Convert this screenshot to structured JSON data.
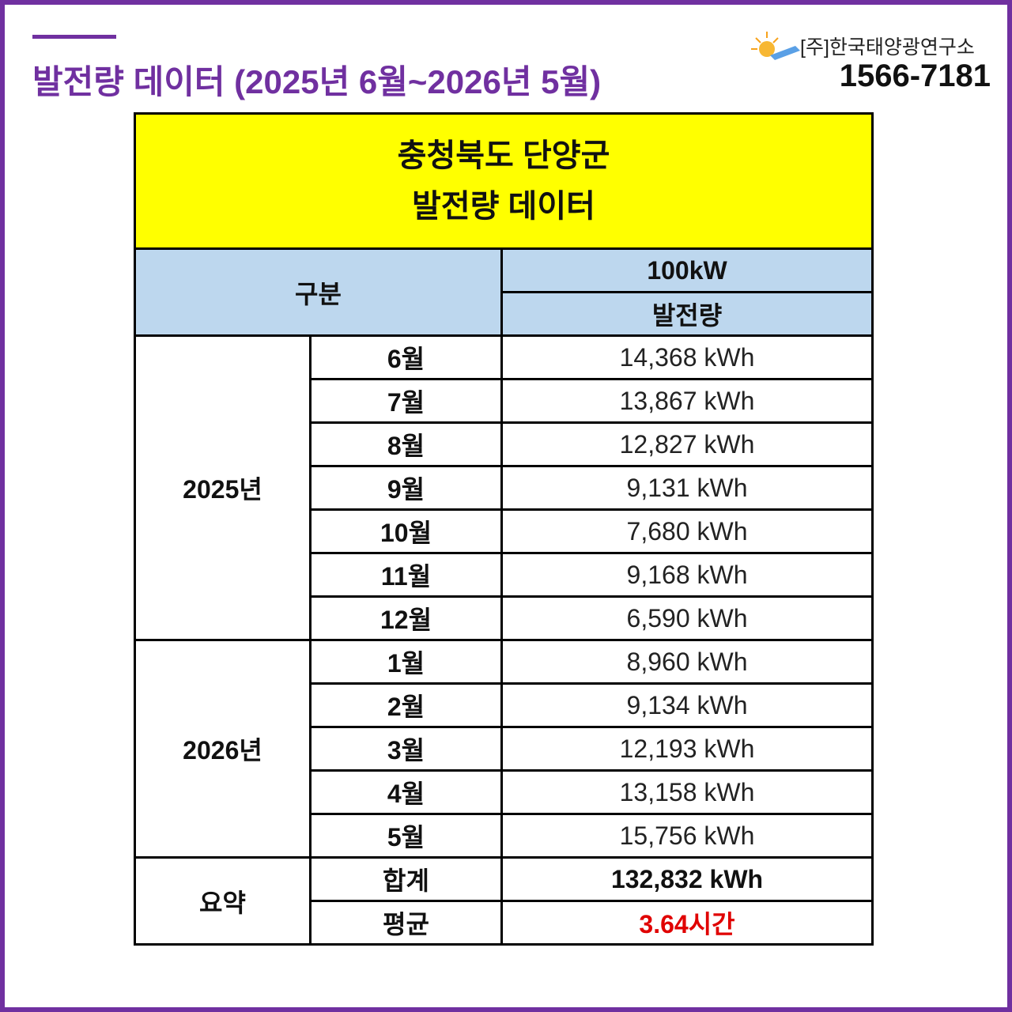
{
  "header": {
    "title": "발전량 데이터 (2025년 6월~2026년 5월)",
    "company": "[주]한국태양광연구소",
    "phone": "1566-7181"
  },
  "table": {
    "title_lines": [
      "충청북도 단양군",
      "발전량 데이터"
    ],
    "category_header": "구분",
    "capacity": "100kW",
    "column_header": "발전량",
    "groups": [
      {
        "label": "2025년",
        "rows": [
          [
            "6월",
            "14,368 kWh"
          ],
          [
            "7월",
            "13,867 kWh"
          ],
          [
            "8월",
            "12,827 kWh"
          ],
          [
            "9월",
            "9,131 kWh"
          ],
          [
            "10월",
            "7,680 kWh"
          ],
          [
            "11월",
            "9,168 kWh"
          ],
          [
            "12월",
            "6,590 kWh"
          ]
        ]
      },
      {
        "label": "2026년",
        "rows": [
          [
            "1월",
            "8,960 kWh"
          ],
          [
            "2월",
            "9,134 kWh"
          ],
          [
            "3월",
            "12,193 kWh"
          ],
          [
            "4월",
            "13,158 kWh"
          ],
          [
            "5월",
            "15,756 kWh"
          ]
        ]
      },
      {
        "label": "요약",
        "rows": [
          [
            "합계",
            "132,832 kWh"
          ],
          [
            "평균",
            "3.64시간"
          ]
        ]
      }
    ]
  }
}
